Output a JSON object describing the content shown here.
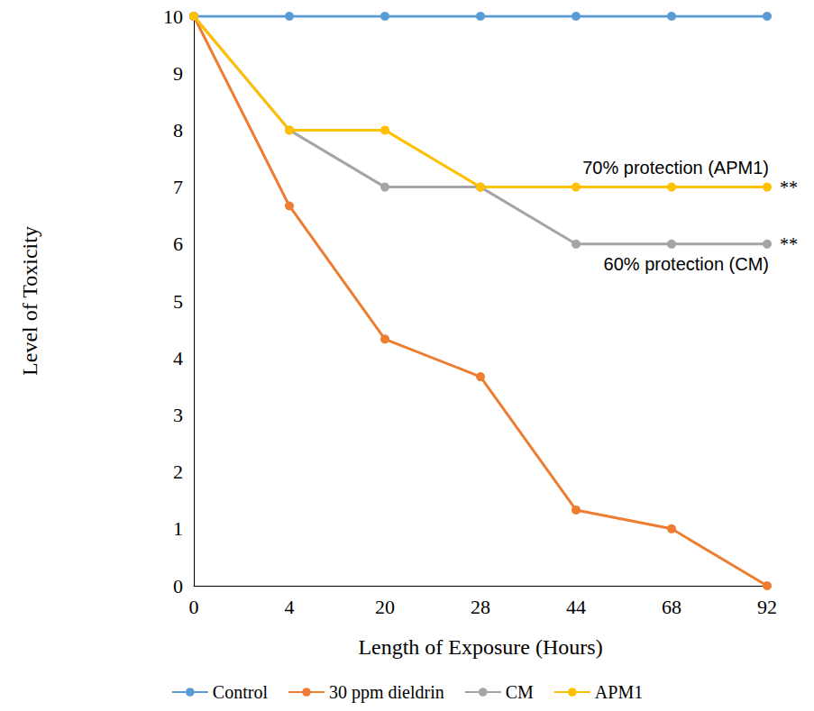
{
  "chart_data": {
    "type": "line",
    "x_label": "Length of Exposure (Hours)",
    "y_label": "Level of Toxicity",
    "categories": [
      "0",
      "4",
      "20",
      "28",
      "44",
      "68",
      "92"
    ],
    "series": [
      {
        "name": "Control",
        "color": "#5b9bd5",
        "values": [
          10,
          10,
          10,
          10,
          10,
          10,
          10
        ]
      },
      {
        "name": "30 ppm dieldrin",
        "color": "#ed7d31",
        "values": [
          10,
          6.67,
          4.33,
          3.67,
          1.33,
          1,
          0
        ]
      },
      {
        "name": "CM",
        "color": "#a5a5a5",
        "values": [
          10,
          8,
          7,
          7,
          6,
          6,
          6
        ]
      },
      {
        "name": "APM1",
        "color": "#ffc000",
        "values": [
          10,
          8,
          8,
          7,
          7,
          7,
          7
        ]
      }
    ],
    "ylim": [
      0,
      10
    ],
    "yticks": [
      0,
      1,
      2,
      3,
      4,
      5,
      6,
      7,
      8,
      9,
      10
    ],
    "grid": false,
    "legend": "bottom",
    "marker": "circle",
    "annotations": [
      {
        "text": "70% protection (APM1)",
        "series": "APM1"
      },
      {
        "text": "**",
        "series": "APM1"
      },
      {
        "text": "60% protection (CM)",
        "series": "CM"
      },
      {
        "text": "**",
        "series": "CM"
      }
    ]
  }
}
